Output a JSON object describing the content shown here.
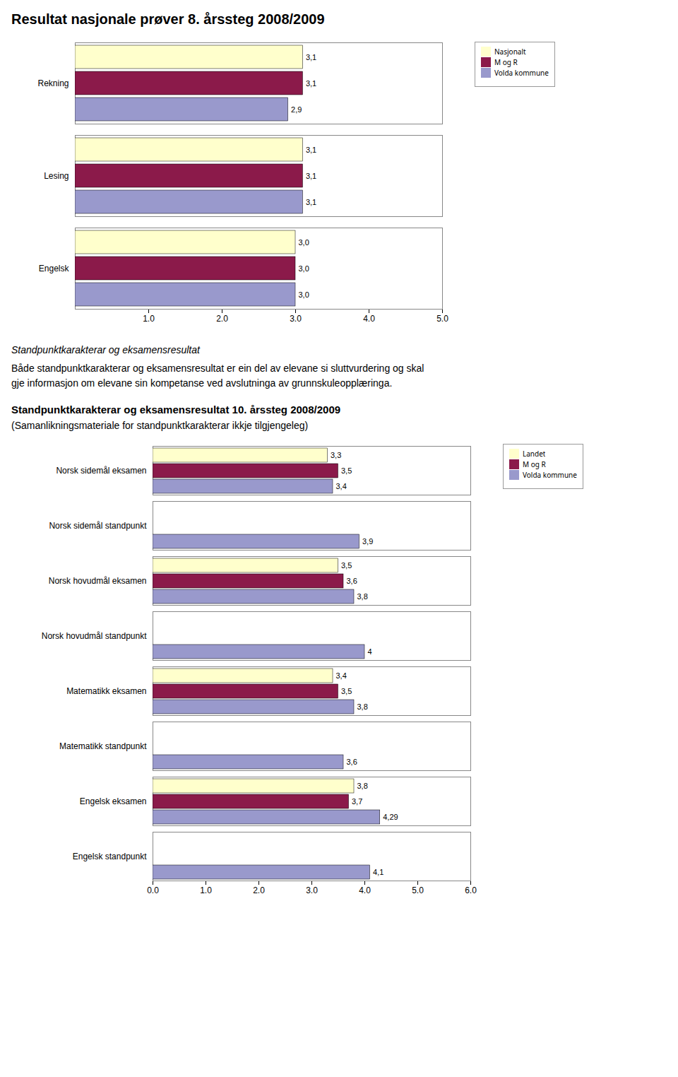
{
  "chart_data": [
    {
      "type": "bar",
      "orientation": "horizontal",
      "title": "Resultat nasjonale prøver 8. årssteg 2008/2009",
      "categories": [
        "Rekning",
        "Lesing",
        "Engelsk"
      ],
      "series": [
        {
          "name": "Nasjonalt",
          "color": "#FFFFCC",
          "values": [
            3.1,
            3.1,
            3.0
          ],
          "value_labels": [
            "3,1",
            "3,1",
            "3,0"
          ]
        },
        {
          "name": "M og R",
          "color": "#8B1A4A",
          "values": [
            3.1,
            3.1,
            3.0
          ],
          "value_labels": [
            "3,1",
            "3,1",
            "3,0"
          ]
        },
        {
          "name": "Volda kommune",
          "color": "#9999CC",
          "values": [
            2.9,
            3.1,
            3.0
          ],
          "value_labels": [
            "2,9",
            "3,1",
            "3,0"
          ]
        }
      ],
      "xlim": [
        0,
        5
      ],
      "xticks": [
        1,
        2,
        3,
        4,
        5
      ],
      "grid": false,
      "legend": "right",
      "data_labels": true
    },
    {
      "type": "bar",
      "orientation": "horizontal",
      "annotations": [
        "Standpunktkarakterar og eksamensresultat",
        "Både standpunktkarakterar og eksamensresultat er ein del av elevane si sluttvurdering og skal\ngje informasjon om elevane sin kompetanse ved avslutninga av grunnskuleopplæringa."
      ],
      "title": "Standpunktkarakterar og eksamensresultat 10. årssteg 2008/2009",
      "subtitle": "(Samanlikningsmateriale for standpunktkarakterar ikkje tilgjengeleg)",
      "categories": [
        "Norsk sidemål eksamen",
        "Norsk sidemål standpunkt",
        "Norsk hovudmål eksamen",
        "Norsk hovudmål standpunkt",
        "Matematikk eksamen",
        "Matematikk standpunkt",
        "Engelsk eksamen",
        "Engelsk standpunkt"
      ],
      "series": [
        {
          "name": "Landet",
          "color": "#FFFFCC",
          "values": [
            3.3,
            0,
            3.5,
            0,
            3.4,
            0,
            3.8,
            0
          ],
          "value_labels": [
            "3,3",
            null,
            "3,5",
            null,
            "3,4",
            null,
            "3,8",
            null
          ]
        },
        {
          "name": "M og R",
          "color": "#8B1A4A",
          "values": [
            3.5,
            0,
            3.6,
            0,
            3.5,
            0,
            3.7,
            0
          ],
          "value_labels": [
            "3,5",
            null,
            "3,6",
            null,
            "3,5",
            null,
            "3,7",
            null
          ]
        },
        {
          "name": "Volda kommune",
          "color": "#9999CC",
          "values": [
            3.4,
            3.9,
            3.8,
            4.0,
            3.8,
            3.6,
            4.29,
            4.1
          ],
          "value_labels": [
            "3,4",
            "3,9",
            "3,8",
            "4",
            "3,8",
            "3,6",
            "4,29",
            "4,1"
          ]
        }
      ],
      "xlim": [
        0,
        6
      ],
      "xticks": [
        0,
        1,
        2,
        3,
        4,
        5,
        6
      ],
      "grid": false,
      "legend": "right",
      "data_labels": true
    }
  ]
}
